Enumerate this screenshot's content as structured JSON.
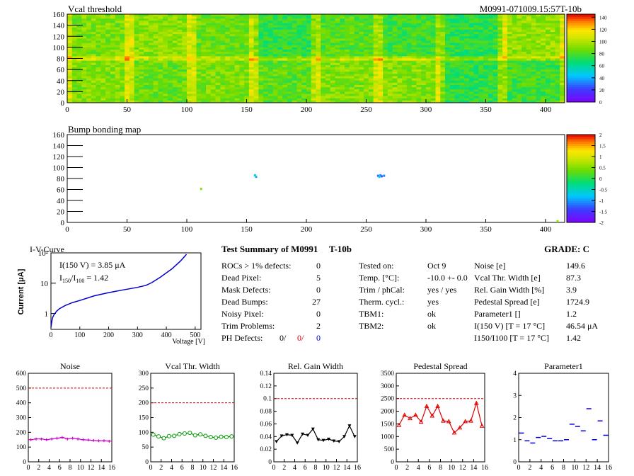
{
  "header": {
    "map1_title": "Vcal threshold",
    "module_id": "M0991-071009.15:57T-10b",
    "map2_title": "Bump bonding map"
  },
  "chart_data": [
    {
      "type": "heatmap",
      "title": "Vcal threshold",
      "xlim": [
        0,
        416
      ],
      "ylim": [
        0,
        160
      ],
      "xticks": [
        "0",
        "50",
        "100",
        "150",
        "200",
        "250",
        "300",
        "350",
        "400"
      ],
      "yticks": [
        "0",
        "20",
        "40",
        "60",
        "80",
        "100",
        "120",
        "140",
        "160"
      ],
      "colorbar": {
        "ticks": [
          "0",
          "20",
          "40",
          "60",
          "80",
          "100",
          "120",
          "140"
        ],
        "range": [
          0,
          145
        ]
      },
      "roc_means_bottom": [
        78,
        74,
        92,
        90,
        84,
        90,
        86,
        91
      ],
      "roc_means_top": [
        90,
        92,
        86,
        74,
        82,
        78,
        74,
        94
      ]
    },
    {
      "type": "heatmap",
      "title": "Bump bonding map",
      "xlim": [
        0,
        416
      ],
      "ylim": [
        0,
        160
      ],
      "xticks": [
        "0",
        "50",
        "100",
        "150",
        "200",
        "250",
        "300",
        "350",
        "400"
      ],
      "yticks": [
        "0",
        "20",
        "40",
        "60",
        "80",
        "100",
        "120",
        "140",
        "160"
      ],
      "colorbar": {
        "ticks": [
          "-2",
          "-1.5",
          "-1",
          "-0.5",
          "0",
          "0.5",
          "1",
          "1.5",
          "2"
        ],
        "range": [
          -2,
          2
        ]
      },
      "hits": [
        {
          "x": 112,
          "y": 61,
          "v": 0.5
        },
        {
          "x": 157,
          "y": 86,
          "v": -0.6
        },
        {
          "x": 158,
          "y": 83,
          "v": -0.9
        },
        {
          "x": 260,
          "y": 85,
          "v": -1.2
        },
        {
          "x": 262,
          "y": 86,
          "v": -1.0
        },
        {
          "x": 263,
          "y": 84,
          "v": -1.3
        },
        {
          "x": 265,
          "y": 85,
          "v": -1.1
        },
        {
          "x": 261,
          "y": 83,
          "v": -0.8
        },
        {
          "x": 410,
          "y": 2,
          "v": 0.6
        }
      ]
    },
    {
      "type": "line",
      "title": "I-V-Curve",
      "xlabel": "Voltage [V]",
      "ylabel": "Current [μA]",
      "xlim": [
        0,
        520
      ],
      "ylim": [
        0.3,
        100
      ],
      "yscale": "log",
      "xticks": [
        "0",
        "100",
        "200",
        "300",
        "400",
        "500"
      ],
      "yticks": [
        "1",
        "10",
        "10²"
      ],
      "annotations": [
        "I(150 V) = 3.85 μA",
        "I150/I100 =  1.42"
      ],
      "x": [
        0,
        5,
        10,
        20,
        30,
        50,
        75,
        100,
        150,
        200,
        250,
        300,
        330,
        350,
        380,
        420,
        450,
        470
      ],
      "y": [
        0.35,
        0.7,
        0.9,
        1.2,
        1.45,
        1.85,
        2.3,
        2.7,
        3.85,
        4.9,
        6.0,
        7.3,
        8.5,
        10.5,
        16,
        30,
        55,
        90
      ]
    },
    {
      "type": "line",
      "title": "Noise",
      "ylim": [
        0,
        600
      ],
      "yticks": [
        "0",
        "100",
        "200",
        "300",
        "400",
        "500",
        "600"
      ],
      "xticks": [
        "0",
        "2",
        "4",
        "6",
        "8",
        "10",
        "12",
        "14",
        "16"
      ],
      "threshold": 500,
      "color": "#cc00cc",
      "marker": "tick",
      "values": [
        150,
        155,
        155,
        150,
        155,
        160,
        165,
        155,
        160,
        155,
        150,
        148,
        145,
        142,
        143,
        140
      ]
    },
    {
      "type": "line",
      "title": "Vcal Thr. Width",
      "ylim": [
        0,
        300
      ],
      "yticks": [
        "0",
        "50",
        "100",
        "150",
        "200",
        "250",
        "300"
      ],
      "xticks": [
        "0",
        "2",
        "4",
        "6",
        "8",
        "10",
        "12",
        "14",
        "16"
      ],
      "threshold": 200,
      "color": "#009900",
      "marker": "circle",
      "values": [
        92,
        86,
        80,
        87,
        88,
        94,
        96,
        98,
        90,
        93,
        88,
        84,
        82,
        85,
        84,
        86
      ]
    },
    {
      "type": "line",
      "title": "Rel. Gain Width",
      "ylim": [
        0,
        0.14
      ],
      "yticks": [
        "0",
        "0.02",
        "0.04",
        "0.06",
        "0.08",
        "0.1",
        "0.12",
        "0.14"
      ],
      "xticks": [
        "0",
        "2",
        "4",
        "6",
        "8",
        "10",
        "12",
        "14",
        "16"
      ],
      "threshold": 0.1,
      "color": "#000000",
      "marker": "triangle-down",
      "values": [
        0.032,
        0.041,
        0.043,
        0.042,
        0.03,
        0.044,
        0.042,
        0.052,
        0.035,
        0.034,
        0.036,
        0.033,
        0.032,
        0.04,
        0.057,
        0.04
      ]
    },
    {
      "type": "line",
      "title": "Pedestal Spread",
      "ylim": [
        0,
        3500
      ],
      "yticks": [
        "0",
        "500",
        "1000",
        "1500",
        "2000",
        "2500",
        "3000",
        "3500"
      ],
      "xticks": [
        "0",
        "2",
        "4",
        "6",
        "8",
        "10",
        "12",
        "14",
        "16"
      ],
      "threshold": 2500,
      "color": "#dd0000",
      "marker": "triangle-up",
      "values": [
        1450,
        1850,
        1720,
        1850,
        1580,
        2200,
        1820,
        2200,
        1620,
        1600,
        1150,
        1350,
        1600,
        1620,
        2320,
        1420
      ]
    },
    {
      "type": "scatter",
      "title": "Parameter1",
      "ylim": [
        0,
        4
      ],
      "yticks": [
        "0",
        "1",
        "2",
        "3",
        "4"
      ],
      "xticks": [
        "0",
        "2",
        "4",
        "6",
        "8",
        "10",
        "12",
        "14",
        "16"
      ],
      "color": "#0000dd",
      "marker": "cross",
      "values": [
        1.3,
        0.95,
        0.85,
        1.1,
        1.15,
        1.05,
        0.95,
        0.95,
        1.0,
        1.7,
        1.6,
        1.4,
        2.4,
        1.0,
        1.85,
        1.2
      ]
    }
  ],
  "summary": {
    "title": "Test Summary of M0991",
    "tag": "T-10b",
    "grade": "GRADE:  C",
    "left_rows": [
      {
        "label": "ROCs > 1% defects:",
        "value": "0"
      },
      {
        "label": "Dead Pixel:",
        "value": "5"
      },
      {
        "label": "Mask Defects:",
        "value": "0"
      },
      {
        "label": "Dead Bumps:",
        "value": "27"
      },
      {
        "label": "Noisy Pixel:",
        "value": "0"
      },
      {
        "label": "Trim Problems:",
        "value": "2"
      }
    ],
    "ph_defects_label": "PH Defects:",
    "ph_defects": [
      "0/",
      "0/",
      "0"
    ],
    "mid_rows": [
      {
        "label": "Tested on:",
        "value": "Oct 9"
      },
      {
        "label": "Temp. [°C]:",
        "value": "-10.0 +- 0.0"
      },
      {
        "label": "Trim / phCal:",
        "value": "yes / yes"
      },
      {
        "label": "Therm. cycl.:",
        "value": "yes"
      },
      {
        "label": "TBM1:",
        "value": "ok"
      },
      {
        "label": "TBM2:",
        "value": "ok"
      }
    ],
    "right_rows": [
      {
        "label": "Noise [e]",
        "value": "149.6"
      },
      {
        "label": "Vcal Thr. Width [e]",
        "value": "87.3"
      },
      {
        "label": "Rel. Gain Width [%]",
        "value": "3.9"
      },
      {
        "label": "Pedestal Spread [e]",
        "value": "1724.9"
      },
      {
        "label": "Parameter1 []",
        "value": "1.2"
      },
      {
        "label": "I(150 V) [T = 17 °C]",
        "value": "46.54 μA"
      },
      {
        "label": "I150/I100  [T = 17 °C]",
        "value": "1.42"
      }
    ]
  },
  "colors": {
    "noise": "#cc00cc",
    "vcal": "#009900",
    "gain": "#000000",
    "pedestal": "#dd0000",
    "param": "#0000dd",
    "iv": "#0000cc",
    "threshold_line": "#cc0000"
  }
}
